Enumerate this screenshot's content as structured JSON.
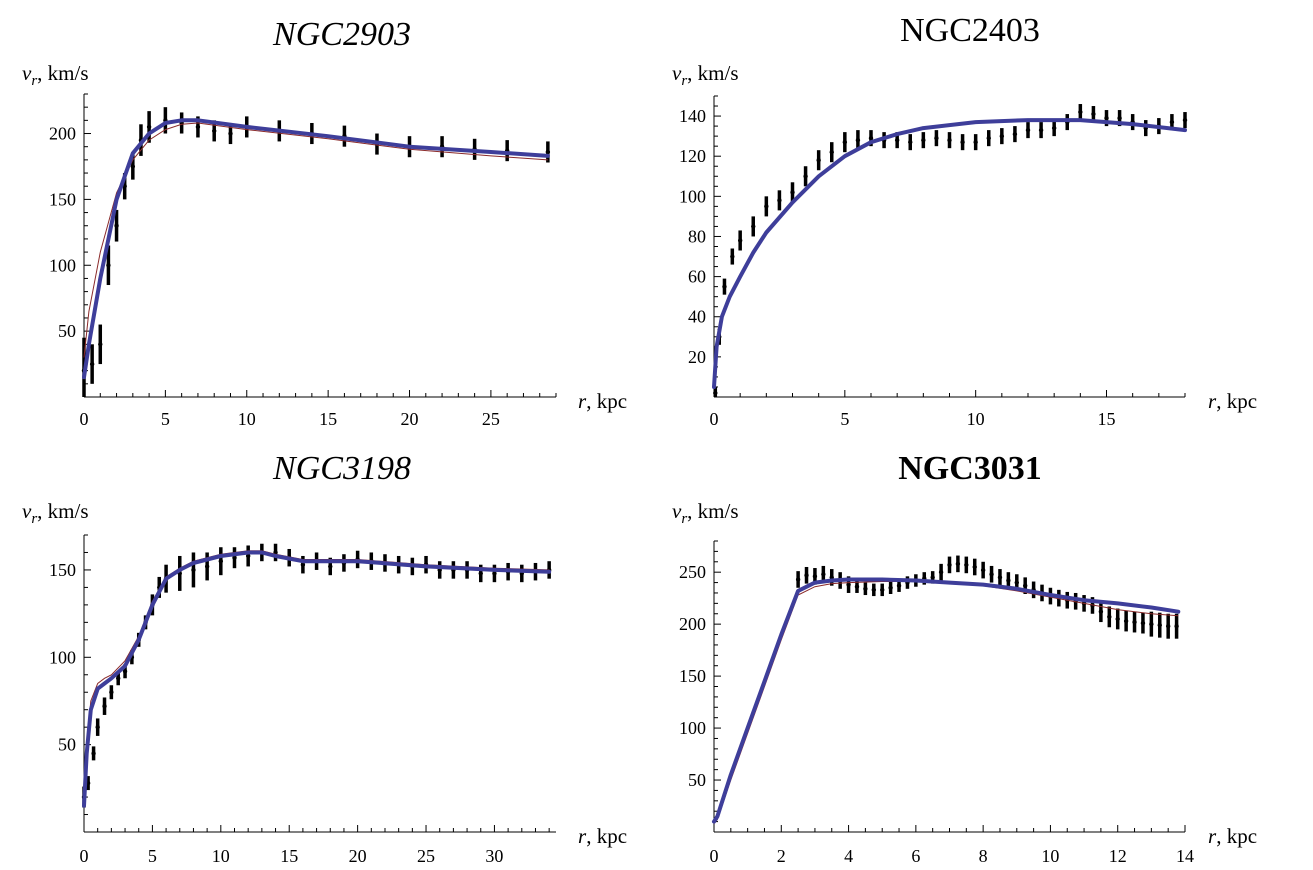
{
  "chart_data": [
    {
      "type": "line",
      "title": "NGC2903",
      "title_style": "italic",
      "xlabel": "r, kpc",
      "ylabel_var": "v",
      "ylabel_sub": "r",
      "ylabel_unit": ", km/s",
      "xlim": [
        0,
        29
      ],
      "ylim": [
        0,
        230
      ],
      "xticks": [
        0,
        5,
        10,
        15,
        20,
        25
      ],
      "yticks": [
        50,
        100,
        150,
        200
      ],
      "xminor": 1,
      "yminor": 10,
      "colors": {
        "observed": "#000000",
        "fit": "#3e3e9a",
        "model": "#8a2a2a"
      },
      "observed": {
        "x": [
          0,
          0.5,
          1,
          1.5,
          2,
          2.5,
          3,
          3.5,
          4,
          5,
          6,
          7,
          8,
          9,
          10,
          12,
          14,
          16,
          18,
          20,
          22,
          24,
          26,
          28.5
        ],
        "y": [
          20,
          25,
          40,
          100,
          130,
          160,
          175,
          195,
          205,
          210,
          208,
          205,
          202,
          200,
          205,
          202,
          200,
          198,
          192,
          190,
          190,
          188,
          187,
          186
        ],
        "err": [
          25,
          15,
          15,
          15,
          12,
          10,
          10,
          12,
          12,
          10,
          8,
          8,
          8,
          8,
          8,
          8,
          8,
          8,
          8,
          8,
          8,
          8,
          8,
          8
        ]
      },
      "fit": {
        "x": [
          0,
          0.3,
          1,
          2,
          3,
          4,
          5,
          6,
          7,
          10,
          15,
          20,
          25,
          28.5
        ],
        "y": [
          15,
          40,
          90,
          150,
          185,
          200,
          208,
          210,
          210,
          205,
          198,
          190,
          186,
          183
        ]
      },
      "model": {
        "x": [
          0,
          0.3,
          1,
          2,
          3,
          4,
          5,
          6,
          7,
          10,
          15,
          20,
          25,
          28.5
        ],
        "y": [
          30,
          65,
          110,
          155,
          180,
          195,
          203,
          207,
          208,
          203,
          196,
          188,
          183,
          180
        ]
      }
    },
    {
      "type": "line",
      "title": "NGC2403",
      "title_style": "normal",
      "xlabel": "r, kpc",
      "ylabel_var": "v",
      "ylabel_sub": "r",
      "ylabel_unit": ", km/s",
      "xlim": [
        0,
        18
      ],
      "ylim": [
        0,
        150
      ],
      "xticks": [
        0,
        5,
        10,
        15
      ],
      "yticks": [
        20,
        40,
        60,
        80,
        100,
        120,
        140
      ],
      "xminor": 1,
      "yminor": 5,
      "colors": {
        "observed": "#000000",
        "fit": "#3e3e9a",
        "model": "#8a2a2a"
      },
      "observed": {
        "x": [
          0.05,
          0.2,
          0.4,
          0.7,
          1,
          1.5,
          2,
          2.5,
          3,
          3.5,
          4,
          4.5,
          5,
          5.5,
          6,
          6.5,
          7,
          7.5,
          8,
          8.5,
          9,
          9.5,
          10,
          10.5,
          11,
          11.5,
          12,
          12.5,
          13,
          13.5,
          14,
          14.5,
          15,
          15.5,
          16,
          16.5,
          17,
          17.5,
          18
        ],
        "y": [
          2,
          30,
          55,
          70,
          78,
          85,
          95,
          98,
          102,
          110,
          118,
          122,
          127,
          128,
          129,
          128,
          128,
          127,
          128,
          129,
          128,
          127,
          127,
          129,
          130,
          131,
          133,
          133,
          134,
          137,
          142,
          141,
          139,
          139,
          137,
          134,
          135,
          137,
          138
        ],
        "err": [
          3,
          4,
          4,
          4,
          5,
          5,
          5,
          5,
          5,
          5,
          5,
          5,
          5,
          5,
          4,
          4,
          4,
          4,
          4,
          4,
          4,
          4,
          4,
          4,
          4,
          4,
          4,
          4,
          4,
          4,
          4,
          4,
          4,
          4,
          4,
          4,
          4,
          4,
          4
        ]
      },
      "fit": {
        "x": [
          0,
          0.1,
          0.3,
          0.6,
          1,
          1.5,
          2,
          3,
          4,
          5,
          6,
          7,
          8,
          10,
          12,
          14,
          16,
          18
        ],
        "y": [
          5,
          25,
          40,
          50,
          60,
          72,
          82,
          97,
          110,
          120,
          127,
          131,
          134,
          137,
          138,
          138,
          136,
          133
        ],
        "y_dummy": 0
      },
      "model": {
        "x": [
          0,
          0.1,
          0.3,
          0.6,
          1,
          1.5,
          2,
          3,
          4,
          5,
          6,
          7,
          8,
          10,
          12,
          14,
          16,
          18
        ],
        "y": [
          5,
          25,
          40,
          50,
          60,
          72,
          82,
          97,
          110,
          120,
          127,
          131,
          134,
          137,
          138,
          138,
          136,
          133
        ]
      }
    },
    {
      "type": "line",
      "title": "NGC3198",
      "title_style": "italic",
      "xlabel": "r, kpc",
      "ylabel_var": "v",
      "ylabel_sub": "r",
      "ylabel_unit": ", km/s",
      "xlim": [
        0,
        34.5
      ],
      "ylim": [
        0,
        170
      ],
      "xticks": [
        0,
        5,
        10,
        15,
        20,
        25,
        30
      ],
      "yticks": [
        50,
        100,
        150
      ],
      "xminor": 1,
      "yminor": 10,
      "colors": {
        "observed": "#000000",
        "fit": "#3e3e9a",
        "model": "#8a2a2a"
      },
      "observed": {
        "x": [
          0,
          0.3,
          0.7,
          1,
          1.5,
          2,
          2.5,
          3,
          3.5,
          4,
          4.5,
          5,
          5.5,
          6,
          7,
          8,
          9,
          10,
          11,
          12,
          13,
          14,
          15,
          16,
          17,
          18,
          19,
          20,
          21,
          22,
          23,
          24,
          25,
          26,
          27,
          28,
          29,
          30,
          31,
          32,
          33,
          34
        ],
        "y": [
          20,
          28,
          45,
          60,
          72,
          80,
          88,
          92,
          100,
          110,
          120,
          130,
          140,
          145,
          148,
          150,
          152,
          155,
          157,
          158,
          160,
          160,
          157,
          153,
          155,
          152,
          154,
          156,
          155,
          154,
          153,
          152,
          153,
          150,
          150,
          150,
          148,
          148,
          149,
          148,
          149,
          150
        ],
        "err": [
          6,
          4,
          4,
          5,
          5,
          4,
          4,
          4,
          4,
          4,
          4,
          6,
          6,
          8,
          10,
          10,
          8,
          8,
          6,
          6,
          5,
          5,
          5,
          5,
          5,
          5,
          5,
          5,
          5,
          5,
          5,
          5,
          5,
          5,
          5,
          5,
          5,
          5,
          5,
          5,
          5,
          5
        ]
      },
      "fit": {
        "x": [
          0,
          0.2,
          0.5,
          1,
          1.5,
          2,
          3,
          4,
          5,
          6,
          7,
          8,
          10,
          12,
          13,
          14,
          16,
          20,
          25,
          30,
          34
        ],
        "y": [
          15,
          45,
          70,
          82,
          85,
          88,
          95,
          110,
          130,
          145,
          150,
          154,
          158,
          160,
          160,
          158,
          155,
          155,
          152,
          150,
          149
        ]
      },
      "model": {
        "x": [
          0,
          0.2,
          0.5,
          1,
          1.5,
          2,
          3,
          4,
          5,
          6,
          7,
          8,
          10,
          12,
          13,
          14,
          16,
          20,
          25,
          30,
          34
        ],
        "y": [
          20,
          50,
          75,
          85,
          88,
          90,
          98,
          112,
          132,
          146,
          151,
          155,
          159,
          161,
          161,
          159,
          156,
          156,
          153,
          151,
          150
        ]
      }
    },
    {
      "type": "line",
      "title": "NGC3031",
      "title_style": "bold",
      "xlabel": "r, kpc",
      "ylabel_var": "v",
      "ylabel_sub": "r",
      "ylabel_unit": ", km/s",
      "xlim": [
        0,
        14
      ],
      "ylim": [
        0,
        280
      ],
      "xticks": [
        0,
        2,
        4,
        6,
        8,
        10,
        12,
        14
      ],
      "yticks": [
        50,
        100,
        150,
        200,
        250
      ],
      "xminor": 0.5,
      "yminor": 10,
      "colors": {
        "observed": "#000000",
        "fit": "#3e3e9a",
        "model": "#8a2a2a"
      },
      "observed": {
        "x": [
          2.5,
          2.75,
          3,
          3.25,
          3.5,
          3.75,
          4,
          4.25,
          4.5,
          4.75,
          5,
          5.25,
          5.5,
          5.75,
          6,
          6.25,
          6.5,
          6.75,
          7,
          7.25,
          7.5,
          7.75,
          8,
          8.25,
          8.5,
          8.75,
          9,
          9.25,
          9.5,
          9.75,
          10,
          10.25,
          10.5,
          10.75,
          11,
          11.25,
          11.5,
          11.75,
          12,
          12.25,
          12.5,
          12.75,
          13,
          13.25,
          13.5,
          13.75
        ],
        "y": [
          243,
          247,
          246,
          248,
          245,
          242,
          238,
          236,
          234,
          233,
          233,
          235,
          237,
          240,
          242,
          244,
          245,
          250,
          257,
          258,
          257,
          255,
          252,
          248,
          245,
          242,
          240,
          237,
          233,
          230,
          227,
          225,
          223,
          222,
          220,
          218,
          212,
          207,
          205,
          203,
          202,
          201,
          200,
          199,
          198,
          198
        ],
        "err": [
          8,
          8,
          8,
          8,
          8,
          8,
          8,
          6,
          6,
          6,
          6,
          6,
          6,
          6,
          6,
          6,
          6,
          8,
          8,
          8,
          8,
          8,
          8,
          8,
          8,
          8,
          8,
          8,
          8,
          8,
          8,
          8,
          8,
          8,
          8,
          8,
          10,
          10,
          10,
          10,
          10,
          10,
          12,
          12,
          12,
          12
        ]
      },
      "fit": {
        "x": [
          0,
          0.1,
          0.5,
          1,
          1.5,
          2,
          2.5,
          3,
          3.5,
          4,
          5,
          6,
          7,
          8,
          9,
          10,
          11,
          12,
          13,
          13.8
        ],
        "y": [
          10,
          15,
          55,
          100,
          145,
          190,
          232,
          240,
          242,
          243,
          243,
          242,
          240,
          238,
          234,
          228,
          223,
          220,
          216,
          212
        ]
      },
      "model": {
        "x": [
          0,
          0.1,
          0.5,
          1,
          1.5,
          2,
          2.5,
          3,
          3.5,
          4,
          5,
          6,
          7,
          8,
          9,
          10,
          11,
          12,
          13,
          13.8
        ],
        "y": [
          8,
          12,
          50,
          95,
          140,
          185,
          228,
          236,
          239,
          240,
          241,
          241,
          240,
          237,
          232,
          226,
          220,
          214,
          210,
          208
        ]
      }
    }
  ]
}
